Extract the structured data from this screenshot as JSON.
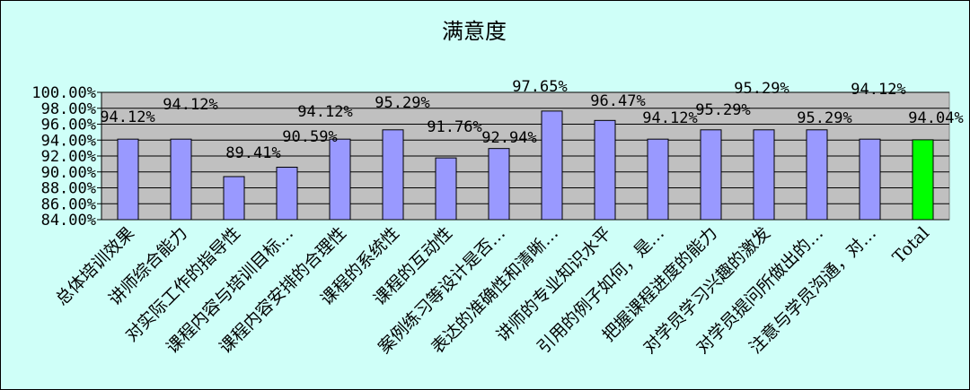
{
  "chart_data": {
    "type": "bar",
    "title": "满意度",
    "xlabel": "",
    "ylabel": "",
    "ylim": [
      84,
      100
    ],
    "y_tick_values": [
      84,
      86,
      88,
      90,
      92,
      94,
      96,
      98,
      100
    ],
    "y_tick_labels": [
      "84.00%",
      "86.00%",
      "88.00%",
      "90.00%",
      "92.00%",
      "94.00%",
      "96.00%",
      "98.00%",
      "100.00%"
    ],
    "grid": true,
    "legend": "none",
    "categories": [
      "总体培训效果",
      "讲师综合能力",
      "对实际工作的指导性",
      "课程内容与培训目标…",
      "课程内容安排的合理性",
      "课程的系统性",
      "课程的互动性",
      "案例练习等设计是否…",
      "表达的准确性和清晰…",
      "讲师的专业知识水平",
      "引用的例子如何，是…",
      "把握课程进度的能力",
      "对学员学习兴趣的激发",
      "对学员提问所做出的…",
      "注意与学员沟通，对…",
      "Total"
    ],
    "values": [
      94.12,
      94.12,
      89.41,
      90.59,
      94.12,
      95.29,
      91.76,
      92.94,
      97.65,
      96.47,
      94.12,
      95.29,
      95.29,
      95.29,
      94.12,
      94.04
    ],
    "data_labels": [
      "94.12%",
      "94.12%",
      "89.41%",
      "90.59%",
      "94.12%",
      "95.29%",
      "91.76%",
      "92.94%",
      "97.65%",
      "96.47%",
      "94.12%",
      "95.29%",
      "95.29%",
      "95.29%",
      "94.12%",
      "94.04%"
    ],
    "colors": {
      "background": "#cffff8",
      "plot_area": "#c0c0c0",
      "bar": "#9999ff",
      "total_bar": "#00ff00",
      "gridline": "#000000"
    }
  }
}
